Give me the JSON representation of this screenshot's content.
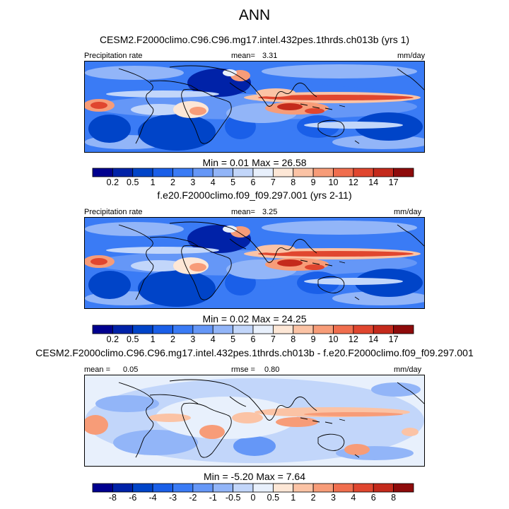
{
  "figure": {
    "title": "ANN"
  },
  "panels": [
    {
      "title": "CESM2.F2000climo.C96.C96.mg17.intel.432pes.1thrds.ch013b (yrs 1)",
      "left_label": "Precipitation rate",
      "mid_key": "mean=",
      "mid_value": "3.31",
      "right_label": "mm/day",
      "stats": "Min =   0.01 Max =  26.58"
    },
    {
      "title": "f.e20.F2000climo.f09_f09.297.001 (yrs 2-11)",
      "left_label": "Precipitation rate",
      "mid_key": "mean=",
      "mid_value": "3.25",
      "right_label": "mm/day",
      "stats": "Min =   0.02 Max =  24.25"
    },
    {
      "title": "CESM2.F2000climo.C96.C96.mg17.intel.432pes.1thrds.ch013b - f.e20.F2000climo.f09_f09.297.001",
      "left_key": "mean =",
      "left_value": "0.05",
      "mid_key": "rmse =",
      "mid_value": "0.80",
      "right_label": "mm/day",
      "stats": "Min =  -5.20 Max =   7.64"
    }
  ],
  "chart_data": [
    {
      "type": "heatmap",
      "title": "CESM2.F2000climo.C96.C96.mg17.intel.432pes.1thrds.ch013b (yrs 1)",
      "variable": "Precipitation rate",
      "units": "mm/day",
      "mean": 3.31,
      "min": 0.01,
      "max": 26.58,
      "levels": [
        0.2,
        0.5,
        1,
        2,
        3,
        4,
        5,
        6,
        7,
        8,
        9,
        10,
        12,
        14,
        17
      ],
      "colors": [
        "#00008f",
        "#0022a8",
        "#0044c8",
        "#1a5fe8",
        "#3a7bf5",
        "#6597f7",
        "#92b5f8",
        "#c2d6fa",
        "#e8f0fc",
        "#fde7d6",
        "#fbc3a5",
        "#f79c78",
        "#f06e4e",
        "#e0462f",
        "#c42a1c",
        "#8e0b0b"
      ]
    },
    {
      "type": "heatmap",
      "title": "f.e20.F2000climo.f09_f09.297.001 (yrs 2-11)",
      "variable": "Precipitation rate",
      "units": "mm/day",
      "mean": 3.25,
      "min": 0.02,
      "max": 24.25,
      "levels": [
        0.2,
        0.5,
        1,
        2,
        3,
        4,
        5,
        6,
        7,
        8,
        9,
        10,
        12,
        14,
        17
      ],
      "colors": [
        "#00008f",
        "#0022a8",
        "#0044c8",
        "#1a5fe8",
        "#3a7bf5",
        "#6597f7",
        "#92b5f8",
        "#c2d6fa",
        "#e8f0fc",
        "#fde7d6",
        "#fbc3a5",
        "#f79c78",
        "#f06e4e",
        "#e0462f",
        "#c42a1c",
        "#8e0b0b"
      ]
    },
    {
      "type": "heatmap",
      "title": "CESM2.F2000climo.C96.C96.mg17.intel.432pes.1thrds.ch013b - f.e20.F2000climo.f09_f09.297.001",
      "units": "mm/day",
      "mean": 0.05,
      "rmse": 0.8,
      "min": -5.2,
      "max": 7.64,
      "levels": [
        -8,
        -6,
        -4,
        -3,
        -2,
        -1,
        -0.5,
        0,
        0.5,
        1,
        2,
        3,
        4,
        6,
        8
      ],
      "colors": [
        "#00008f",
        "#0022a8",
        "#0044c8",
        "#1a5fe8",
        "#3a7bf5",
        "#6597f7",
        "#92b5f8",
        "#c2d6fa",
        "#e8f0fc",
        "#fde7d6",
        "#fbc3a5",
        "#f79c78",
        "#f06e4e",
        "#e0462f",
        "#c42a1c",
        "#8e0b0b"
      ]
    }
  ]
}
